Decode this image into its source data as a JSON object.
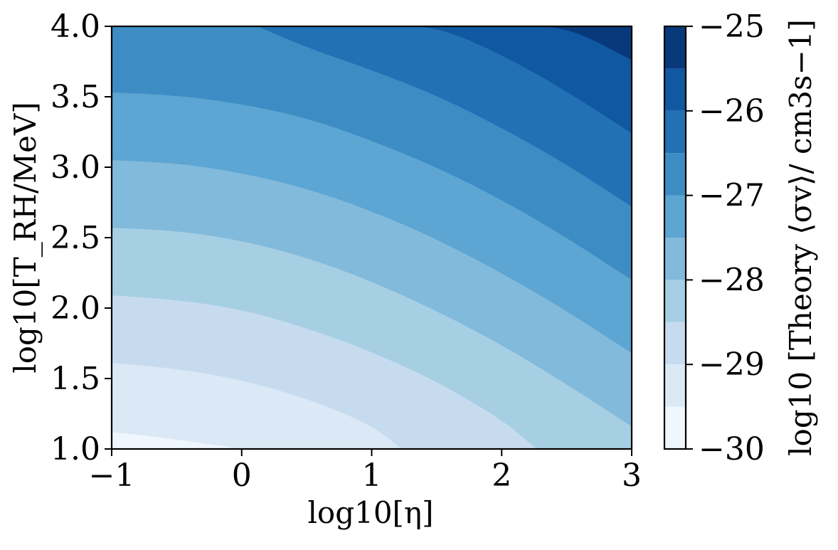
{
  "chart_data": {
    "type": "heatmap",
    "title": "",
    "xlabel": "log10[η]",
    "ylabel": "log10[T_RH/MeV]",
    "colorbar_label": "log10 [Theory ⟨σv⟩/ cm3s−1]",
    "xlim": [
      -1,
      3
    ],
    "ylim": [
      1.0,
      4.0
    ],
    "x_ticks": [
      -1,
      0,
      1,
      2,
      3
    ],
    "x_tick_labels": [
      "−1",
      "0",
      "1",
      "2",
      "3"
    ],
    "y_ticks": [
      1.0,
      1.5,
      2.0,
      2.5,
      3.0,
      3.5,
      4.0
    ],
    "y_tick_labels": [
      "1.0",
      "1.5",
      "2.0",
      "2.5",
      "3.0",
      "3.5",
      "4.0"
    ],
    "colorbar_range": [
      -30,
      -25
    ],
    "colorbar_ticks": [
      -30,
      -29,
      -28,
      -27,
      -26,
      -25
    ],
    "colorbar_tick_labels": [
      "−30",
      "−29",
      "−28",
      "−27",
      "−26",
      "−25"
    ],
    "contour_levels": [
      -30,
      -29.5,
      -29,
      -28.5,
      -28,
      -27.5,
      -27,
      -26.5,
      -26,
      -25.5,
      -25
    ],
    "contour_colors": [
      "#f0f6fd",
      "#dbe9f6",
      "#c7dbef",
      "#a7cfe4",
      "#82badb",
      "#5da5d2",
      "#3d8dc4",
      "#2271b5",
      "#1058a2",
      "#083a7b"
    ],
    "contour_boundaries": [
      {
        "level": -29.5,
        "points": [
          [
            -1,
            1.12
          ],
          [
            -0.6,
            1.08
          ],
          [
            -0.3,
            1.04
          ],
          [
            0,
            1.0
          ]
        ]
      },
      {
        "level": -29.0,
        "points": [
          [
            -1,
            1.61
          ],
          [
            -0.5,
            1.57
          ],
          [
            0,
            1.49
          ],
          [
            0.5,
            1.36
          ],
          [
            1,
            1.17
          ],
          [
            1.23,
            1.0
          ]
        ]
      },
      {
        "level": -28.5,
        "points": [
          [
            -1,
            2.09
          ],
          [
            -0.5,
            2.06
          ],
          [
            0,
            1.99
          ],
          [
            0.5,
            1.86
          ],
          [
            1,
            1.69
          ],
          [
            1.5,
            1.48
          ],
          [
            2,
            1.21
          ],
          [
            2.27,
            1.0
          ]
        ]
      },
      {
        "level": -28.0,
        "points": [
          [
            -1,
            2.57
          ],
          [
            -0.5,
            2.55
          ],
          [
            0,
            2.48
          ],
          [
            0.5,
            2.36
          ],
          [
            1,
            2.19
          ],
          [
            1.5,
            1.98
          ],
          [
            2,
            1.74
          ],
          [
            2.5,
            1.46
          ],
          [
            3,
            1.16
          ]
        ]
      },
      {
        "level": -27.5,
        "points": [
          [
            -1,
            3.05
          ],
          [
            -0.5,
            3.03
          ],
          [
            0,
            2.96
          ],
          [
            0.5,
            2.85
          ],
          [
            1,
            2.69
          ],
          [
            1.5,
            2.49
          ],
          [
            2,
            2.25
          ],
          [
            2.5,
            1.98
          ],
          [
            3,
            1.68
          ]
        ]
      },
      {
        "level": -27.0,
        "points": [
          [
            -1,
            3.53
          ],
          [
            -0.5,
            3.51
          ],
          [
            0,
            3.45
          ],
          [
            0.5,
            3.35
          ],
          [
            1,
            3.19
          ],
          [
            1.5,
            3.0
          ],
          [
            2,
            2.77
          ],
          [
            2.5,
            2.5
          ],
          [
            3,
            2.2
          ]
        ]
      },
      {
        "level": -26.5,
        "points": [
          [
            0.12,
            4.0
          ],
          [
            0.5,
            3.85
          ],
          [
            1,
            3.69
          ],
          [
            1.5,
            3.51
          ],
          [
            2,
            3.28
          ],
          [
            2.5,
            3.02
          ],
          [
            3,
            2.72
          ]
        ]
      },
      {
        "level": -26.0,
        "points": [
          [
            1.09,
            4.0
          ],
          [
            1.5,
            4.0
          ],
          [
            2,
            3.8
          ],
          [
            2.5,
            3.54
          ],
          [
            3,
            3.24
          ]
        ]
      },
      {
        "level": -25.5,
        "points": [
          [
            2.04,
            4.0
          ],
          [
            2.5,
            4.0
          ],
          [
            3,
            3.76
          ]
        ]
      },
      {
        "level": -25.0,
        "points": [
          [
            2.98,
            4.0
          ],
          [
            3,
            4.0
          ]
        ]
      }
    ]
  }
}
